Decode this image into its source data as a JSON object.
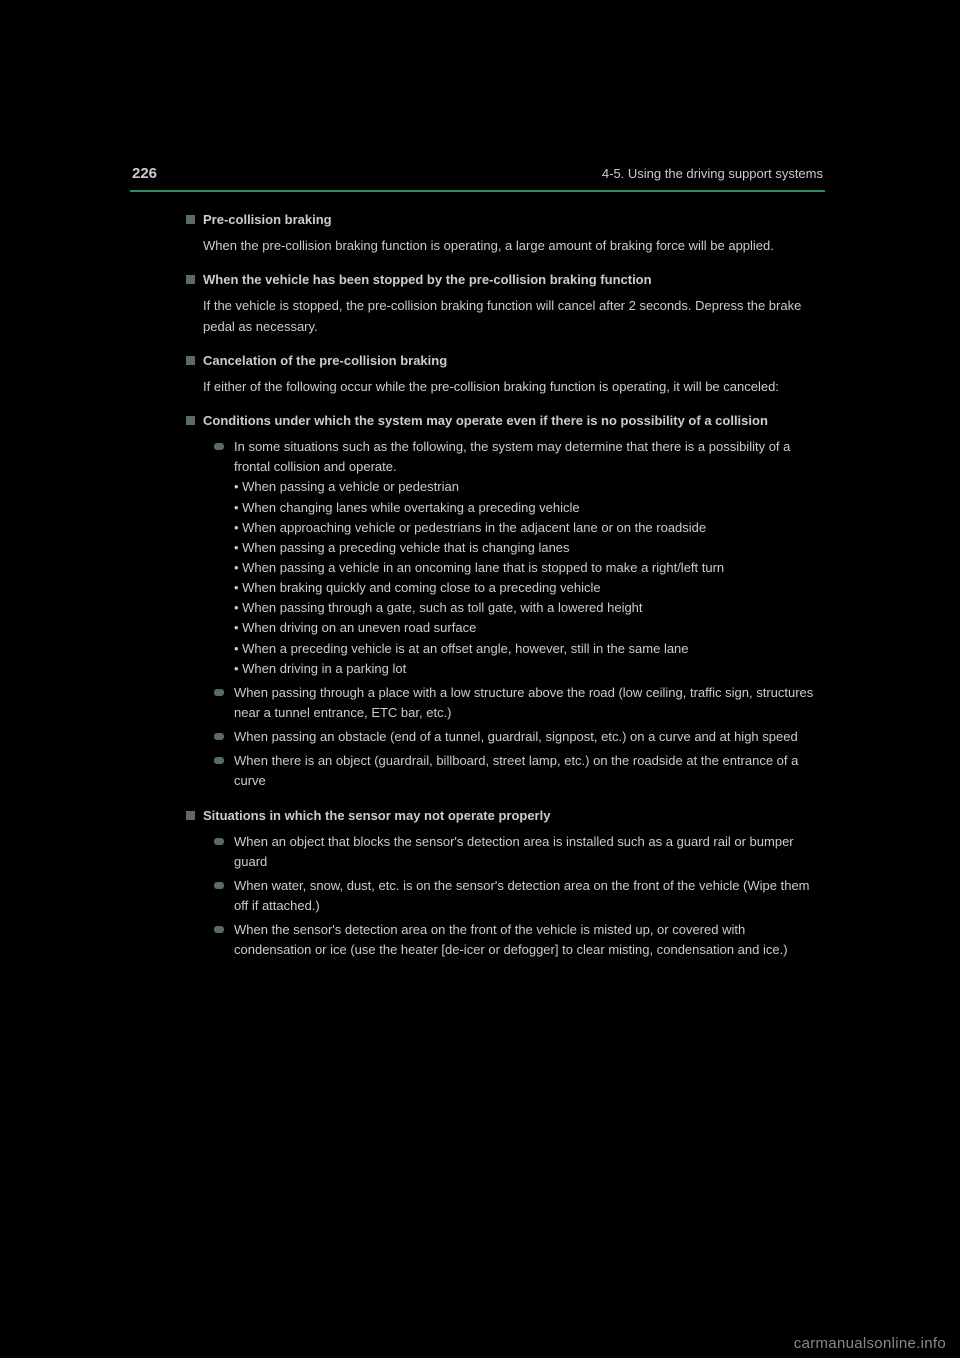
{
  "colors": {
    "background": "#000000",
    "text": "#cccccc",
    "accent_line": "#2a8f5d",
    "bullet": "#5a6b63",
    "watermark": "#888888"
  },
  "header": {
    "page_number": "226",
    "section_label": "4-5. Using the driving support systems"
  },
  "sections": [
    {
      "heading": "Pre-collision braking",
      "body": "When the pre-collision braking function is operating, a large amount of braking force will be applied."
    },
    {
      "heading": "When the vehicle has been stopped by the pre-collision braking function",
      "body": "If the vehicle is stopped, the pre-collision braking function will cancel after 2 seconds. Depress the brake pedal as necessary."
    },
    {
      "heading": "Cancelation of the pre-collision braking",
      "body": "If either of the following occur while the pre-collision braking function is operating, it will be canceled:"
    },
    {
      "heading": "Conditions under which the system may operate even if there is no possibility of a collision",
      "bullets": [
        {
          "text": "In some situations such as the following, the system may determine that there is a possibility of a frontal collision and operate.",
          "sublines": [
            "• When passing a vehicle or pedestrian",
            "• When changing lanes while overtaking a preceding vehicle",
            "• When approaching vehicle or pedestrians in the adjacent lane or on the roadside",
            "• When passing a preceding vehicle that is changing lanes",
            "• When passing a vehicle in an oncoming lane that is stopped to make a right/left turn",
            "• When braking quickly and coming close to a preceding vehicle",
            "• When passing through a gate, such as toll gate, with a lowered height",
            "• When driving on an uneven road surface",
            "• When a preceding vehicle is at an offset angle, however, still in the same lane",
            "• When driving in a parking lot"
          ]
        },
        {
          "text": "When passing through a place with a low structure above the road (low ceiling, traffic sign, structures near a tunnel entrance, ETC bar, etc.)"
        },
        {
          "text": "When passing an obstacle (end of a tunnel, guardrail, signpost, etc.) on a curve and at high speed"
        },
        {
          "text": "When there is an object (guardrail, billboard, street lamp, etc.) on the roadside at the entrance of a curve"
        }
      ]
    },
    {
      "heading": "Situations in which the sensor may not operate properly",
      "bullets": [
        {
          "text": "When an object that blocks the sensor's detection area is installed such as a guard rail or bumper guard"
        },
        {
          "text": "When water, snow, dust, etc. is on the sensor's detection area on the front of the vehicle (Wipe them off if attached.)"
        },
        {
          "text": "When the sensor's detection area on the front of the vehicle is misted up, or covered with condensation or ice (use the heater [de-icer or defogger] to clear misting, condensation and ice.)"
        }
      ]
    }
  ],
  "watermark": "carmanualsonline.info"
}
